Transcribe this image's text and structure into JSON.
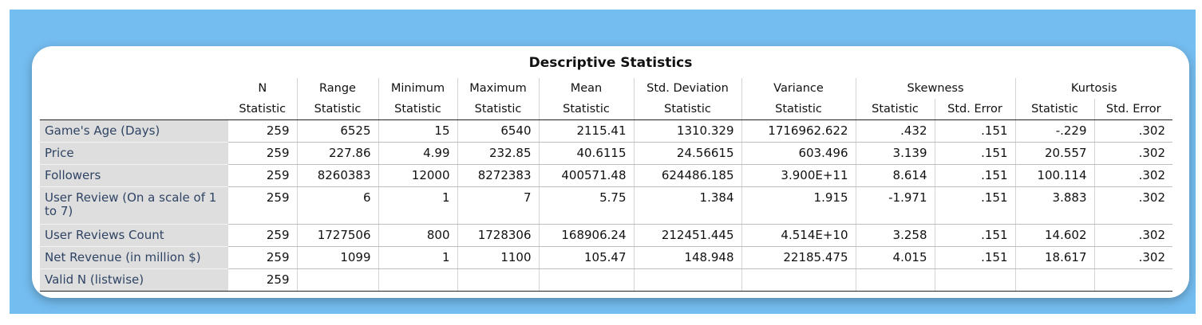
{
  "title": "Descriptive Statistics",
  "columns": {
    "n": "N",
    "range": "Range",
    "minimum": "Minimum",
    "maximum": "Maximum",
    "mean": "Mean",
    "std_deviation": "Std. Deviation",
    "variance": "Variance",
    "skewness": "Skewness",
    "kurtosis": "Kurtosis"
  },
  "subheaders": {
    "statistic": "Statistic",
    "std_error": "Std. Error"
  },
  "rows": [
    {
      "label": "Game's Age (Days)",
      "values": [
        "259",
        "6525",
        "15",
        "6540",
        "2115.41",
        "1310.329",
        "1716962.622",
        ".432",
        ".151",
        "-.229",
        ".302"
      ]
    },
    {
      "label": "Price",
      "values": [
        "259",
        "227.86",
        "4.99",
        "232.85",
        "40.6115",
        "24.56615",
        "603.496",
        "3.139",
        ".151",
        "20.557",
        ".302"
      ]
    },
    {
      "label": "Followers",
      "values": [
        "259",
        "8260383",
        "12000",
        "8272383",
        "400571.48",
        "624486.185",
        "3.900E+11",
        "8.614",
        ".151",
        "100.114",
        ".302"
      ]
    },
    {
      "label": "User Review (On a scale of 1 to 7)",
      "values": [
        "259",
        "6",
        "1",
        "7",
        "5.75",
        "1.384",
        "1.915",
        "-1.971",
        ".151",
        "3.883",
        ".302"
      ]
    },
    {
      "label": "User Reviews Count",
      "values": [
        "259",
        "1727506",
        "800",
        "1728306",
        "168906.24",
        "212451.445",
        "4.514E+10",
        "3.258",
        ".151",
        "14.602",
        ".302"
      ]
    },
    {
      "label": "Net Revenue (in million $)",
      "values": [
        "259",
        "1099",
        "1",
        "1100",
        "105.47",
        "148.948",
        "22185.475",
        "4.015",
        ".151",
        "18.617",
        ".302"
      ]
    },
    {
      "label": "Valid N (listwise)",
      "values": [
        "259",
        "",
        "",
        "",
        "",
        "",
        "",
        "",
        "",
        "",
        ""
      ]
    }
  ]
}
